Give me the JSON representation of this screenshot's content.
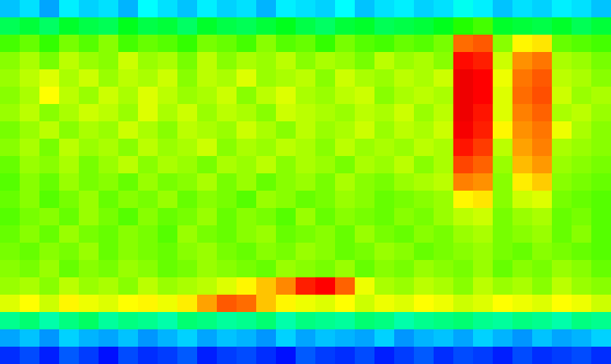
{
  "chart_data": {
    "type": "heatmap",
    "tick_labels": false,
    "zlim": [
      0,
      10
    ],
    "cells": [
      [
        2.8,
        3,
        2.6,
        3.1,
        2.9,
        3,
        2.7,
        3.2,
        3,
        2.8,
        3.1,
        2.9,
        3,
        2.7,
        3.1,
        3,
        2.9,
        3.2,
        2.8,
        3,
        3.1,
        2.9,
        3,
        3.3,
        3.1,
        2.8,
        3,
        2.9,
        3.1,
        3,
        2.8
      ],
      [
        4.4,
        4.6,
        4.3,
        4.7,
        4.5,
        4.4,
        4.8,
        4.5,
        4.6,
        4.3,
        4.7,
        4.5,
        4.4,
        4.6,
        4.8,
        4.5,
        4.3,
        4.6,
        4.7,
        4.4,
        4.5,
        4.6,
        4.8,
        5.2,
        5.4,
        4.7,
        4.6,
        4.5,
        4.7,
        4.4,
        4.6
      ],
      [
        5.4,
        5.6,
        5.3,
        5.7,
        5.5,
        5.8,
        5.4,
        5.6,
        5.5,
        5.3,
        5.7,
        5.6,
        5.4,
        5.8,
        5.5,
        5.6,
        5.3,
        5.7,
        5.5,
        5.4,
        5.6,
        5.5,
        5.7,
        8.2,
        8.4,
        5.8,
        6.6,
        6.8,
        5.6,
        5.5,
        5.4
      ],
      [
        5.8,
        6,
        5.7,
        6.1,
        5.9,
        5.8,
        6.2,
        5.9,
        6,
        5.7,
        6.1,
        5.8,
        6,
        5.9,
        6.1,
        5.8,
        6,
        5.9,
        5.7,
        6.1,
        5.9,
        6,
        5.8,
        9.2,
        9,
        6.2,
        7.8,
        8.1,
        6,
        5.9,
        5.7
      ],
      [
        5.9,
        6.1,
        6.3,
        6,
        6.2,
        5.9,
        6.1,
        6,
        6.2,
        5.8,
        6.1,
        6,
        6.3,
        5.9,
        6,
        6.1,
        5.8,
        6.2,
        6,
        5.9,
        6.1,
        6,
        6.2,
        9.5,
        9.3,
        6.4,
        8.1,
        8.4,
        6.1,
        6,
        5.8
      ],
      [
        5.8,
        6,
        6.5,
        6.1,
        5.9,
        6.2,
        6,
        6.3,
        6.1,
        5.9,
        6,
        6.2,
        5.8,
        6.1,
        6.3,
        6,
        5.9,
        6.1,
        6.2,
        5.8,
        6,
        6.1,
        6,
        9.5,
        9.3,
        6.3,
        8.2,
        8.5,
        6.2,
        5.9,
        6
      ],
      [
        5.9,
        6.1,
        5.8,
        6,
        6.2,
        6.1,
        5.9,
        6.3,
        6,
        6.2,
        5.9,
        6.1,
        6,
        5.8,
        6.2,
        6.1,
        6,
        5.9,
        6.1,
        6,
        6.2,
        5.9,
        6.1,
        9.5,
        9.1,
        6.3,
        8,
        8.3,
        6,
        6.1,
        5.9
      ],
      [
        5.7,
        5.9,
        6.1,
        5.8,
        6,
        5.9,
        6.2,
        6,
        5.8,
        6.1,
        6,
        5.9,
        6.2,
        6,
        5.8,
        6.1,
        5.9,
        6,
        6.2,
        5.9,
        6.1,
        6,
        6.2,
        9.4,
        9,
        6.6,
        7.8,
        8.1,
        6.4,
        6,
        5.8
      ],
      [
        5.8,
        6,
        5.7,
        6.1,
        5.9,
        6,
        5.8,
        6.1,
        5.9,
        6,
        6.2,
        5.8,
        6,
        5.9,
        6.1,
        6,
        5.8,
        6.1,
        5.9,
        6,
        5.9,
        6.1,
        6,
        9.1,
        8.7,
        6.1,
        7.6,
        8,
        6,
        5.9,
        5.8
      ],
      [
        5.6,
        5.9,
        5.8,
        6,
        5.7,
        5.9,
        6.1,
        5.8,
        6,
        5.9,
        5.7,
        6,
        5.9,
        6.1,
        5.8,
        6,
        5.9,
        5.7,
        6,
        5.9,
        6.1,
        5.8,
        6,
        8.6,
        8.3,
        5.9,
        7.3,
        7.7,
        5.9,
        5.8,
        5.7
      ],
      [
        5.5,
        5.8,
        5.6,
        5.9,
        5.7,
        5.8,
        5.6,
        5.9,
        5.7,
        5.8,
        6,
        5.7,
        5.9,
        5.6,
        5.8,
        5.9,
        5.7,
        6,
        5.8,
        5.7,
        5.9,
        6,
        6.1,
        8,
        7.8,
        5.8,
        6.7,
        7.1,
        5.8,
        5.7,
        5.6
      ],
      [
        5.6,
        5.8,
        5.5,
        5.7,
        5.9,
        5.6,
        5.8,
        5.7,
        5.9,
        5.6,
        5.8,
        5.7,
        5.5,
        5.9,
        5.8,
        5.6,
        5.7,
        5.9,
        5.8,
        5.6,
        5.7,
        5.8,
        5.9,
        6.6,
        6.8,
        5.8,
        6.2,
        6.3,
        5.7,
        5.6,
        5.5
      ],
      [
        5.5,
        5.7,
        5.8,
        5.6,
        5.9,
        5.7,
        5.5,
        5.8,
        5.6,
        5.7,
        5.9,
        5.6,
        5.8,
        5.7,
        5.5,
        5.9,
        5.6,
        5.8,
        5.7,
        5.6,
        5.8,
        5.7,
        5.9,
        6.1,
        6.2,
        5.7,
        5.9,
        6,
        5.6,
        5.7,
        5.5
      ],
      [
        5.6,
        5.8,
        5.6,
        5.9,
        5.7,
        5.6,
        5.8,
        5.7,
        5.5,
        5.9,
        5.7,
        5.6,
        5.8,
        5.9,
        5.6,
        5.7,
        5.8,
        5.6,
        5.9,
        5.7,
        5.6,
        5.8,
        5.7,
        5.9,
        6,
        5.7,
        5.8,
        5.9,
        5.6,
        5.8,
        5.5
      ],
      [
        5.7,
        5.6,
        5.8,
        5.7,
        5.9,
        5.6,
        5.8,
        5.7,
        5.6,
        5.8,
        5.9,
        5.7,
        5.6,
        5.8,
        5.7,
        5.9,
        5.8,
        5.6,
        5.7,
        5.9,
        5.8,
        5.6,
        5.7,
        5.8,
        5.9,
        5.7,
        5.6,
        5.8,
        5.7,
        5.6,
        5.5
      ],
      [
        5.8,
        5.7,
        5.9,
        5.6,
        5.8,
        5.7,
        5.9,
        5.8,
        5.6,
        5.7,
        5.9,
        5.8,
        5.7,
        5.6,
        5.9,
        5.8,
        5.7,
        5.9,
        5.6,
        5.8,
        5.7,
        5.9,
        5.8,
        5.7,
        5.9,
        5.6,
        5.8,
        5.7,
        5.9,
        5.8,
        5.6
      ],
      [
        5.9,
        6,
        5.8,
        6.1,
        5.9,
        6,
        5.8,
        6.1,
        5.9,
        6,
        6.1,
        6.3,
        6.6,
        7.2,
        7.9,
        9,
        9.3,
        8.3,
        6.4,
        6,
        5.9,
        6.1,
        6,
        5.8,
        6.1,
        5.9,
        6,
        5.8,
        6.1,
        5.9,
        5.8
      ],
      [
        6.3,
        6.5,
        6.2,
        6.6,
        6.4,
        6.3,
        6.5,
        6.6,
        6.4,
        6.7,
        7.6,
        8.4,
        8.2,
        7.2,
        6.6,
        6.4,
        6.3,
        6.5,
        6.2,
        6.4,
        6.3,
        6.5,
        6.4,
        6.2,
        6.3,
        6.5,
        6.4,
        6.3,
        6.5,
        6.4,
        6.2
      ],
      [
        4,
        4.2,
        3.8,
        4.1,
        4.3,
        3.9,
        4.1,
        4,
        3.8,
        4.2,
        4.1,
        3.9,
        4,
        4.2,
        3.8,
        4.1,
        4,
        3.9,
        4.2,
        4.1,
        3.8,
        4,
        4.1,
        4.2,
        4,
        3.9,
        4.1,
        4,
        3.8,
        4.1,
        4
      ],
      [
        2.6,
        2.8,
        2.5,
        2.9,
        2.7,
        2.6,
        2.8,
        2.5,
        2.7,
        2.9,
        2.6,
        2.8,
        2.7,
        2.5,
        2.9,
        2.6,
        2.8,
        2.7,
        2.6,
        2.9,
        2.5,
        2.7,
        2.8,
        2.6,
        2.9,
        2.7,
        2.5,
        2.8,
        2.6,
        2.7,
        2.9
      ],
      [
        1.8,
        2,
        1.7,
        2.1,
        1.9,
        1.6,
        2,
        1.8,
        1.9,
        2.1,
        1.7,
        1.9,
        2,
        1.8,
        1.6,
        2.1,
        1.9,
        1.8,
        2,
        1.7,
        1.9,
        2.1,
        1.8,
        2,
        1.9,
        1.7,
        2,
        1.8,
        1.9,
        2,
        1.8
      ]
    ]
  }
}
